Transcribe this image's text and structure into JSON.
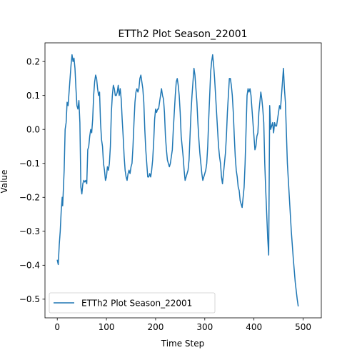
{
  "chart_data": {
    "type": "line",
    "title": "ETTh2 Plot Season_22001",
    "xlabel": "Time Step",
    "ylabel": "Value",
    "xlim": [
      -25,
      537
    ],
    "ylim": [
      -0.555,
      0.255
    ],
    "xticks": [
      0,
      100,
      200,
      300,
      400,
      500
    ],
    "xtick_labels": [
      "0",
      "100",
      "200",
      "300",
      "400",
      "500"
    ],
    "yticks": [
      0.2,
      0.1,
      0.0,
      -0.1,
      -0.2,
      -0.3,
      -0.4,
      -0.5
    ],
    "ytick_labels": [
      "0.2",
      "0.1",
      "0.0",
      "−0.1",
      "−0.2",
      "−0.3",
      "−0.4",
      "−0.5"
    ],
    "legend_placement": "lower-left",
    "grid": false,
    "series": [
      {
        "name": "ETTh2 Plot Season_22001",
        "color": "#1f77b4",
        "points": [
          [
            0,
            -0.385
          ],
          [
            2,
            -0.398
          ],
          [
            4,
            -0.34
          ],
          [
            6,
            -0.3
          ],
          [
            8,
            -0.24
          ],
          [
            10,
            -0.2
          ],
          [
            11,
            -0.225
          ],
          [
            12,
            -0.19
          ],
          [
            14,
            -0.12
          ],
          [
            16,
            0.0
          ],
          [
            18,
            0.02
          ],
          [
            20,
            0.08
          ],
          [
            22,
            0.07
          ],
          [
            24,
            0.11
          ],
          [
            26,
            0.15
          ],
          [
            28,
            0.19
          ],
          [
            30,
            0.22
          ],
          [
            32,
            0.2
          ],
          [
            34,
            0.21
          ],
          [
            36,
            0.18
          ],
          [
            38,
            0.12
          ],
          [
            40,
            0.07
          ],
          [
            42,
            0.06
          ],
          [
            44,
            0.085
          ],
          [
            46,
            0.02
          ],
          [
            48,
            -0.17
          ],
          [
            50,
            -0.19
          ],
          [
            52,
            -0.16
          ],
          [
            54,
            -0.15
          ],
          [
            56,
            -0.155
          ],
          [
            58,
            -0.15
          ],
          [
            60,
            -0.16
          ],
          [
            62,
            -0.06
          ],
          [
            64,
            -0.05
          ],
          [
            66,
            -0.02
          ],
          [
            68,
            0.0
          ],
          [
            70,
            -0.01
          ],
          [
            72,
            0.03
          ],
          [
            74,
            0.1
          ],
          [
            76,
            0.14
          ],
          [
            78,
            0.16
          ],
          [
            80,
            0.15
          ],
          [
            82,
            0.12
          ],
          [
            84,
            0.1
          ],
          [
            86,
            0.11
          ],
          [
            88,
            0.02
          ],
          [
            90,
            -0.03
          ],
          [
            92,
            -0.05
          ],
          [
            94,
            -0.1
          ],
          [
            96,
            -0.12
          ],
          [
            98,
            -0.15
          ],
          [
            100,
            -0.14
          ],
          [
            102,
            -0.11
          ],
          [
            104,
            -0.12
          ],
          [
            106,
            -0.1
          ],
          [
            108,
            -0.05
          ],
          [
            110,
            0.05
          ],
          [
            112,
            0.1
          ],
          [
            114,
            0.13
          ],
          [
            116,
            0.12
          ],
          [
            118,
            0.1
          ],
          [
            120,
            0.1
          ],
          [
            122,
            0.11
          ],
          [
            124,
            0.13
          ],
          [
            126,
            0.1
          ],
          [
            128,
            0.12
          ],
          [
            130,
            0.09
          ],
          [
            132,
            0.03
          ],
          [
            134,
            -0.02
          ],
          [
            136,
            -0.08
          ],
          [
            138,
            -0.12
          ],
          [
            140,
            -0.14
          ],
          [
            142,
            -0.15
          ],
          [
            144,
            -0.13
          ],
          [
            146,
            -0.12
          ],
          [
            148,
            -0.13
          ],
          [
            150,
            -0.11
          ],
          [
            152,
            -0.1
          ],
          [
            154,
            -0.05
          ],
          [
            156,
            0.02
          ],
          [
            158,
            0.08
          ],
          [
            160,
            0.11
          ],
          [
            162,
            0.12
          ],
          [
            164,
            0.11
          ],
          [
            166,
            0.12
          ],
          [
            168,
            0.15
          ],
          [
            170,
            0.16
          ],
          [
            172,
            0.14
          ],
          [
            174,
            0.12
          ],
          [
            176,
            0.08
          ],
          [
            178,
            0.0
          ],
          [
            180,
            -0.06
          ],
          [
            182,
            -0.1
          ],
          [
            184,
            -0.14
          ],
          [
            186,
            -0.14
          ],
          [
            188,
            -0.13
          ],
          [
            190,
            -0.14
          ],
          [
            192,
            -0.12
          ],
          [
            194,
            -0.09
          ],
          [
            196,
            -0.04
          ],
          [
            198,
            0.03
          ],
          [
            200,
            0.06
          ],
          [
            202,
            0.05
          ],
          [
            204,
            0.06
          ],
          [
            206,
            0.06
          ],
          [
            208,
            0.08
          ],
          [
            210,
            0.1
          ],
          [
            212,
            0.12
          ],
          [
            214,
            0.1
          ],
          [
            216,
            0.09
          ],
          [
            218,
            0.05
          ],
          [
            220,
            -0.02
          ],
          [
            222,
            -0.06
          ],
          [
            224,
            -0.09
          ],
          [
            226,
            -0.1
          ],
          [
            228,
            -0.11
          ],
          [
            230,
            -0.1
          ],
          [
            232,
            -0.08
          ],
          [
            234,
            -0.06
          ],
          [
            236,
            0.0
          ],
          [
            238,
            0.05
          ],
          [
            240,
            0.1
          ],
          [
            242,
            0.14
          ],
          [
            244,
            0.15
          ],
          [
            246,
            0.13
          ],
          [
            248,
            0.1
          ],
          [
            250,
            0.05
          ],
          [
            252,
            -0.02
          ],
          [
            254,
            -0.05
          ],
          [
            256,
            -0.08
          ],
          [
            258,
            -0.12
          ],
          [
            260,
            -0.15
          ],
          [
            262,
            -0.14
          ],
          [
            264,
            -0.13
          ],
          [
            266,
            -0.12
          ],
          [
            268,
            -0.09
          ],
          [
            270,
            -0.02
          ],
          [
            272,
            0.05
          ],
          [
            274,
            0.1
          ],
          [
            276,
            0.14
          ],
          [
            278,
            0.18
          ],
          [
            280,
            0.16
          ],
          [
            282,
            0.12
          ],
          [
            284,
            0.08
          ],
          [
            286,
            0.02
          ],
          [
            288,
            -0.03
          ],
          [
            290,
            -0.07
          ],
          [
            292,
            -0.1
          ],
          [
            294,
            -0.13
          ],
          [
            296,
            -0.15
          ],
          [
            298,
            -0.14
          ],
          [
            300,
            -0.13
          ],
          [
            302,
            -0.12
          ],
          [
            304,
            -0.1
          ],
          [
            306,
            -0.05
          ],
          [
            308,
            0.03
          ],
          [
            310,
            0.1
          ],
          [
            312,
            0.17
          ],
          [
            314,
            0.2
          ],
          [
            316,
            0.22
          ],
          [
            318,
            0.19
          ],
          [
            320,
            0.15
          ],
          [
            322,
            0.1
          ],
          [
            324,
            0.05
          ],
          [
            326,
            0.0
          ],
          [
            328,
            -0.05
          ],
          [
            330,
            -0.08
          ],
          [
            332,
            -0.1
          ],
          [
            334,
            -0.14
          ],
          [
            336,
            -0.16
          ],
          [
            338,
            -0.13
          ],
          [
            340,
            -0.1
          ],
          [
            342,
            -0.07
          ],
          [
            344,
            -0.02
          ],
          [
            346,
            0.05
          ],
          [
            348,
            0.1
          ],
          [
            350,
            0.15
          ],
          [
            352,
            0.15
          ],
          [
            354,
            0.13
          ],
          [
            356,
            0.1
          ],
          [
            358,
            0.05
          ],
          [
            360,
            -0.02
          ],
          [
            362,
            -0.08
          ],
          [
            364,
            -0.12
          ],
          [
            366,
            -0.14
          ],
          [
            368,
            -0.17
          ],
          [
            370,
            -0.18
          ],
          [
            372,
            -0.21
          ],
          [
            374,
            -0.22
          ],
          [
            376,
            -0.23
          ],
          [
            378,
            -0.2
          ],
          [
            380,
            -0.17
          ],
          [
            382,
            -0.1
          ],
          [
            384,
            0.0
          ],
          [
            386,
            0.1
          ],
          [
            388,
            0.12
          ],
          [
            390,
            0.11
          ],
          [
            392,
            0.12
          ],
          [
            394,
            0.1
          ],
          [
            396,
            0.06
          ],
          [
            398,
            0.02
          ],
          [
            400,
            -0.02
          ],
          [
            402,
            -0.06
          ],
          [
            404,
            -0.05
          ],
          [
            406,
            -0.02
          ],
          [
            408,
            -0.01
          ],
          [
            410,
            0.05
          ],
          [
            412,
            0.08
          ],
          [
            414,
            0.11
          ],
          [
            416,
            0.09
          ],
          [
            418,
            0.06
          ],
          [
            420,
            0.02
          ],
          [
            422,
            -0.1
          ],
          [
            424,
            -0.18
          ],
          [
            426,
            -0.25
          ],
          [
            428,
            -0.32
          ],
          [
            430,
            -0.37
          ],
          [
            432,
            0.07
          ],
          [
            434,
            0.0
          ],
          [
            436,
            0.01
          ],
          [
            438,
            0.02
          ],
          [
            440,
            -0.01
          ],
          [
            442,
            0.02
          ],
          [
            444,
            0.01
          ],
          [
            446,
            0.01
          ],
          [
            448,
            0.03
          ],
          [
            450,
            0.05
          ],
          [
            452,
            0.07
          ],
          [
            454,
            0.06
          ],
          [
            456,
            0.1
          ],
          [
            458,
            0.14
          ],
          [
            460,
            0.18
          ],
          [
            462,
            0.12
          ],
          [
            464,
            0.08
          ],
          [
            468,
            -0.1
          ],
          [
            472,
            -0.2
          ],
          [
            476,
            -0.3
          ],
          [
            480,
            -0.38
          ],
          [
            484,
            -0.45
          ],
          [
            488,
            -0.5
          ],
          [
            490,
            -0.52
          ]
        ]
      }
    ]
  }
}
